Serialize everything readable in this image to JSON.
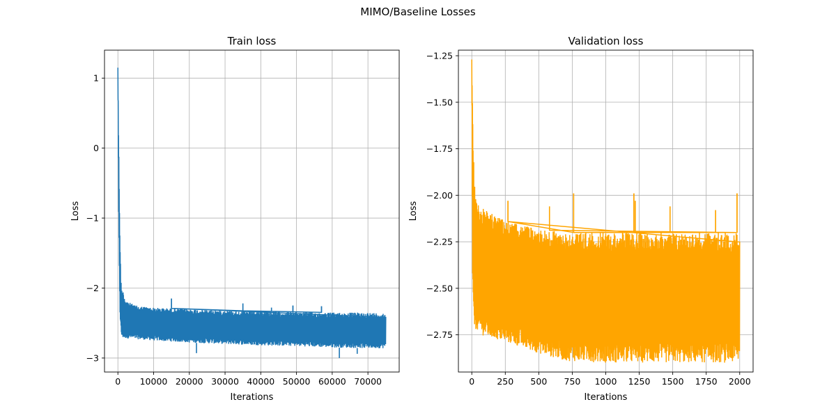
{
  "figure": {
    "suptitle": "MIMO/Baseline Losses"
  },
  "chart_data": [
    {
      "type": "line",
      "title": "Train loss",
      "xlabel": "Iterations",
      "ylabel": "Loss",
      "xlim": [
        -3750,
        78750
      ],
      "ylim": [
        -3.2,
        1.4
      ],
      "xticks": [
        0,
        10000,
        20000,
        30000,
        40000,
        50000,
        60000,
        70000
      ],
      "xtick_labels": [
        "0",
        "10000",
        "20000",
        "30000",
        "40000",
        "50000",
        "60000",
        "70000"
      ],
      "yticks": [
        1,
        0,
        -1,
        -2,
        -3
      ],
      "ytick_labels": [
        "1",
        "0",
        "−1",
        "−2",
        "−3"
      ],
      "grid": true,
      "color": "#1f77b4",
      "series": [
        {
          "x": [
            0,
            200,
            400,
            600,
            800,
            1000,
            1500,
            2000,
            3000,
            5000,
            10000,
            20000,
            30000,
            40000,
            50000,
            60000,
            70000,
            75000
          ],
          "y_mid": [
            1.15,
            -0.4,
            -1.3,
            -1.9,
            -2.2,
            -2.35,
            -2.45,
            -2.48,
            -2.5,
            -2.52,
            -2.54,
            -2.56,
            -2.57,
            -2.58,
            -2.59,
            -2.6,
            -2.6,
            -2.6
          ],
          "y_low": [
            1.15,
            -0.9,
            -1.8,
            -2.4,
            -2.6,
            -2.7,
            -2.72,
            -2.72,
            -2.72,
            -2.73,
            -2.75,
            -2.78,
            -2.8,
            -2.82,
            -2.83,
            -2.85,
            -2.86,
            -2.86
          ],
          "y_high": [
            1.15,
            0.2,
            -0.6,
            -1.3,
            -1.8,
            -2.0,
            -2.05,
            -2.15,
            -2.2,
            -2.25,
            -2.28,
            -2.3,
            -2.32,
            -2.33,
            -2.34,
            -2.35,
            -2.35,
            -2.36
          ],
          "spikes_up": [
            [
              15000,
              -2.15
            ],
            [
              35000,
              -2.22
            ],
            [
              43000,
              -2.28
            ],
            [
              49000,
              -2.25
            ],
            [
              57000,
              -2.26
            ]
          ],
          "spikes_down": [
            [
              62000,
              -3.0
            ],
            [
              22000,
              -2.93
            ],
            [
              67000,
              -2.94
            ]
          ]
        }
      ]
    },
    {
      "type": "line",
      "title": "Validation loss",
      "xlabel": "Iterations",
      "ylabel": "Loss",
      "xlim": [
        -100,
        2100
      ],
      "ylim": [
        -2.95,
        -1.22
      ],
      "xticks": [
        0,
        250,
        500,
        750,
        1000,
        1250,
        1500,
        1750,
        2000
      ],
      "xtick_labels": [
        "0",
        "250",
        "500",
        "750",
        "1000",
        "1250",
        "1500",
        "1750",
        "2000"
      ],
      "yticks": [
        -1.25,
        -1.5,
        -1.75,
        -2.0,
        -2.25,
        -2.5,
        -2.75
      ],
      "ytick_labels": [
        "−1.25",
        "−1.50",
        "−1.75",
        "−2.00",
        "−2.25",
        "−2.50",
        "−2.75"
      ],
      "grid": true,
      "color": "#ffa500",
      "series": [
        {
          "x": [
            0,
            5,
            10,
            20,
            30,
            50,
            100,
            200,
            300,
            500,
            700,
            1000,
            1250,
            1500,
            1750,
            2000
          ],
          "y_low": [
            -1.27,
            -2.4,
            -2.65,
            -2.7,
            -2.72,
            -2.74,
            -2.76,
            -2.78,
            -2.8,
            -2.85,
            -2.89,
            -2.9,
            -2.9,
            -2.9,
            -2.9,
            -2.9
          ],
          "y_high": [
            -1.27,
            -1.45,
            -1.75,
            -1.9,
            -2.0,
            -2.05,
            -2.08,
            -2.12,
            -2.15,
            -2.18,
            -2.2,
            -2.2,
            -2.2,
            -2.2,
            -2.2,
            -2.2
          ],
          "spikes_up": [
            [
              270,
              -2.03
            ],
            [
              760,
              -1.99
            ],
            [
              1210,
              -1.99
            ],
            [
              1220,
              -2.03
            ],
            [
              1480,
              -2.06
            ],
            [
              1980,
              -1.99
            ],
            [
              580,
              -2.06
            ],
            [
              1820,
              -2.08
            ]
          ]
        }
      ]
    }
  ]
}
